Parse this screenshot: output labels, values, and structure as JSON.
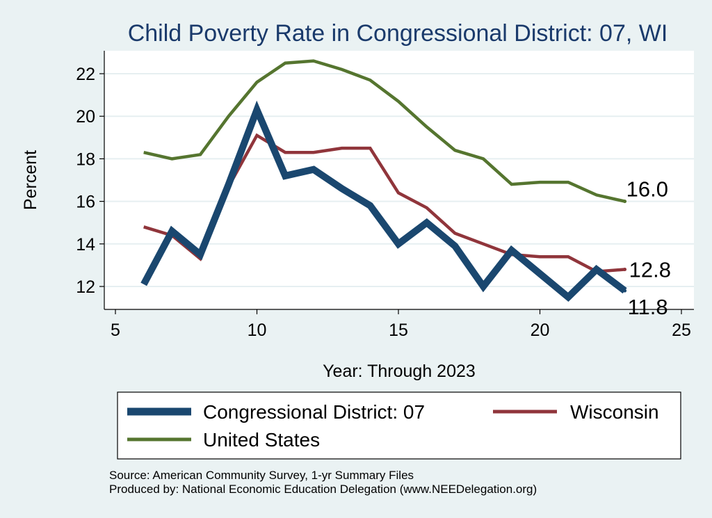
{
  "chart_data": {
    "type": "line",
    "title": "Child Poverty Rate in Congressional District:  07, WI",
    "xlabel": "Year: Through 2023",
    "ylabel": "Percent",
    "xlim": [
      5,
      25
    ],
    "ylim": [
      11,
      23
    ],
    "xticks": [
      5,
      10,
      15,
      20,
      25
    ],
    "yticks": [
      12,
      14,
      16,
      18,
      20,
      22
    ],
    "grid": true,
    "legend_position": "bottom",
    "series": [
      {
        "name": "Congressional District:  07",
        "color": "#1a476f",
        "x": [
          6,
          7,
          8,
          9,
          10,
          11,
          12,
          13,
          14,
          15,
          16,
          17,
          18,
          19,
          20,
          21,
          22,
          23
        ],
        "values": [
          12.1,
          14.6,
          13.5,
          16.8,
          20.3,
          17.2,
          17.5,
          16.6,
          15.8,
          14.0,
          15.0,
          13.9,
          12.0,
          13.7,
          12.6,
          11.5,
          12.8,
          11.8
        ],
        "end_label": "11.8"
      },
      {
        "name": "Wisconsin",
        "color": "#90353b",
        "x": [
          6,
          7,
          8,
          9,
          10,
          11,
          12,
          13,
          14,
          15,
          16,
          17,
          18,
          19,
          20,
          21,
          22,
          23
        ],
        "values": [
          14.8,
          14.4,
          13.3,
          16.7,
          19.1,
          18.3,
          18.3,
          18.5,
          18.5,
          16.4,
          15.7,
          14.5,
          14.0,
          13.5,
          13.4,
          13.4,
          12.7,
          12.8
        ],
        "end_label": "12.8"
      },
      {
        "name": "United States",
        "color": "#55752f",
        "x": [
          6,
          7,
          8,
          9,
          10,
          11,
          12,
          13,
          14,
          15,
          16,
          17,
          18,
          19,
          20,
          21,
          22,
          23
        ],
        "values": [
          18.3,
          18.0,
          18.2,
          20.0,
          21.6,
          22.5,
          22.6,
          22.2,
          21.7,
          20.7,
          19.5,
          18.4,
          18.0,
          16.8,
          16.9,
          16.9,
          16.3,
          16.0
        ],
        "end_label": "16.0"
      }
    ],
    "source_lines": [
      "Source: American Community Survey, 1-yr Summary Files",
      "Produced by: National Economic Education Delegation (www.NEEDelegation.org)"
    ]
  }
}
